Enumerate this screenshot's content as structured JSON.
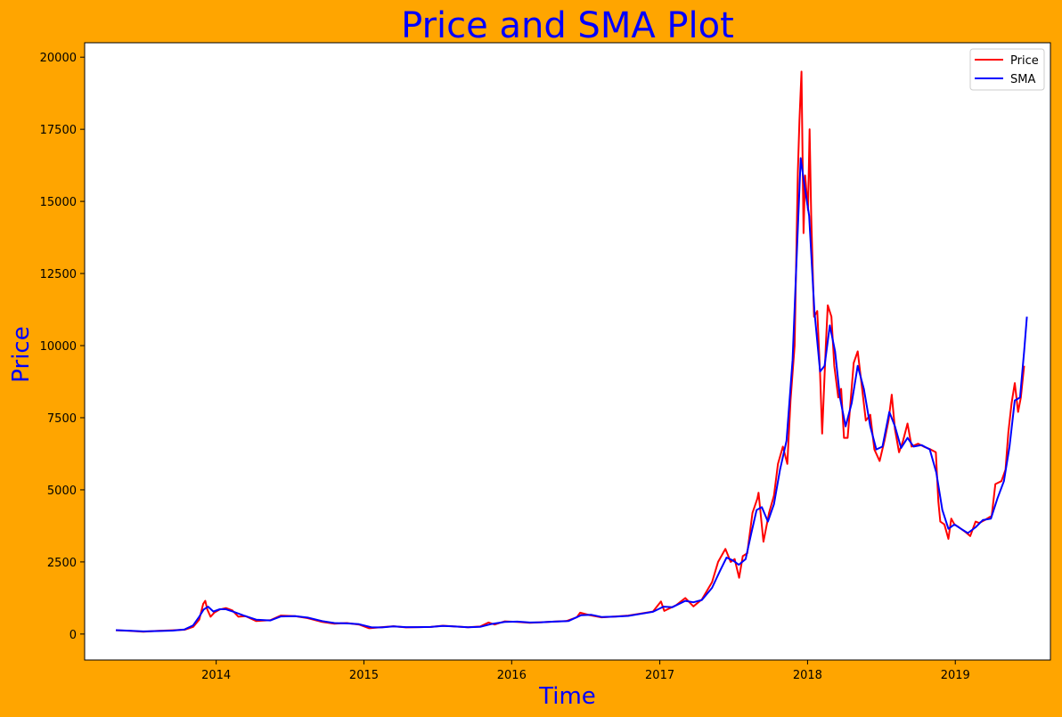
{
  "chart_data": {
    "type": "line",
    "title": "Price and SMA Plot",
    "xlabel": "Time",
    "ylabel": "Price",
    "title_color": "#0000FF",
    "label_color": "#0000FF",
    "background_color": "#FFA500",
    "plot_background": "#FFFFFF",
    "x_ticks": [
      "2014",
      "2015",
      "2016",
      "2017",
      "2018",
      "2019"
    ],
    "y_ticks": [
      0,
      2500,
      5000,
      7500,
      10000,
      12500,
      15000,
      17500,
      20000
    ],
    "xlim": [
      "2013-02-10",
      "2019-08-24"
    ],
    "ylim": [
      -900,
      20500
    ],
    "grid": false,
    "legend_position": "top-right",
    "series": [
      {
        "name": "Price",
        "color": "#FF0000",
        "points": [
          [
            "2013-04-28",
            130
          ],
          [
            "2013-06-01",
            110
          ],
          [
            "2013-07-05",
            80
          ],
          [
            "2013-08-10",
            110
          ],
          [
            "2013-09-15",
            130
          ],
          [
            "2013-10-15",
            150
          ],
          [
            "2013-11-05",
            250
          ],
          [
            "2013-11-20",
            500
          ],
          [
            "2013-11-30",
            1050
          ],
          [
            "2013-12-05",
            1150
          ],
          [
            "2013-12-10",
            850
          ],
          [
            "2013-12-18",
            600
          ],
          [
            "2013-12-28",
            750
          ],
          [
            "2014-01-10",
            850
          ],
          [
            "2014-01-25",
            900
          ],
          [
            "2014-02-10",
            820
          ],
          [
            "2014-02-25",
            600
          ],
          [
            "2014-03-15",
            620
          ],
          [
            "2014-04-10",
            450
          ],
          [
            "2014-05-15",
            480
          ],
          [
            "2014-06-10",
            640
          ],
          [
            "2014-07-15",
            620
          ],
          [
            "2014-08-15",
            550
          ],
          [
            "2014-09-20",
            420
          ],
          [
            "2014-10-20",
            360
          ],
          [
            "2014-11-20",
            380
          ],
          [
            "2014-12-20",
            330
          ],
          [
            "2015-01-14",
            200
          ],
          [
            "2015-02-15",
            240
          ],
          [
            "2015-03-15",
            270
          ],
          [
            "2015-04-15",
            230
          ],
          [
            "2015-05-15",
            240
          ],
          [
            "2015-06-15",
            245
          ],
          [
            "2015-07-15",
            290
          ],
          [
            "2015-08-15",
            260
          ],
          [
            "2015-09-15",
            235
          ],
          [
            "2015-10-15",
            260
          ],
          [
            "2015-11-05",
            400
          ],
          [
            "2015-11-20",
            330
          ],
          [
            "2015-12-15",
            440
          ],
          [
            "2016-01-15",
            420
          ],
          [
            "2016-02-15",
            390
          ],
          [
            "2016-03-15",
            410
          ],
          [
            "2016-04-15",
            430
          ],
          [
            "2016-05-15",
            450
          ],
          [
            "2016-06-10",
            580
          ],
          [
            "2016-06-18",
            740
          ],
          [
            "2016-07-10",
            660
          ],
          [
            "2016-08-10",
            580
          ],
          [
            "2016-09-15",
            610
          ],
          [
            "2016-10-15",
            640
          ],
          [
            "2016-11-15",
            710
          ],
          [
            "2016-12-15",
            780
          ],
          [
            "2017-01-04",
            1130
          ],
          [
            "2017-01-12",
            800
          ],
          [
            "2017-02-10",
            1000
          ],
          [
            "2017-03-05",
            1250
          ],
          [
            "2017-03-25",
            960
          ],
          [
            "2017-04-15",
            1200
          ],
          [
            "2017-05-10",
            1800
          ],
          [
            "2017-05-25",
            2500
          ],
          [
            "2017-06-12",
            2950
          ],
          [
            "2017-06-25",
            2500
          ],
          [
            "2017-07-05",
            2600
          ],
          [
            "2017-07-16",
            1950
          ],
          [
            "2017-07-25",
            2700
          ],
          [
            "2017-08-05",
            2800
          ],
          [
            "2017-08-18",
            4200
          ],
          [
            "2017-08-30",
            4700
          ],
          [
            "2017-09-02",
            4900
          ],
          [
            "2017-09-14",
            3200
          ],
          [
            "2017-09-28",
            4200
          ],
          [
            "2017-10-10",
            4800
          ],
          [
            "2017-10-20",
            5900
          ],
          [
            "2017-11-01",
            6500
          ],
          [
            "2017-11-12",
            5900
          ],
          [
            "2017-11-20",
            8100
          ],
          [
            "2017-11-30",
            10000
          ],
          [
            "2017-12-08",
            16000
          ],
          [
            "2017-12-12",
            17800
          ],
          [
            "2017-12-17",
            19500
          ],
          [
            "2017-12-22",
            13900
          ],
          [
            "2017-12-26",
            15900
          ],
          [
            "2018-01-02",
            14700
          ],
          [
            "2018-01-06",
            17500
          ],
          [
            "2018-01-10",
            14500
          ],
          [
            "2018-01-17",
            11000
          ],
          [
            "2018-01-25",
            11200
          ],
          [
            "2018-02-01",
            9000
          ],
          [
            "2018-02-06",
            6950
          ],
          [
            "2018-02-15",
            10000
          ],
          [
            "2018-02-20",
            11400
          ],
          [
            "2018-03-01",
            11000
          ],
          [
            "2018-03-08",
            9300
          ],
          [
            "2018-03-18",
            8200
          ],
          [
            "2018-03-25",
            8500
          ],
          [
            "2018-04-01",
            6800
          ],
          [
            "2018-04-10",
            6800
          ],
          [
            "2018-04-25",
            9400
          ],
          [
            "2018-05-05",
            9800
          ],
          [
            "2018-05-15",
            8600
          ],
          [
            "2018-05-25",
            7400
          ],
          [
            "2018-06-05",
            7600
          ],
          [
            "2018-06-15",
            6400
          ],
          [
            "2018-06-28",
            6000
          ],
          [
            "2018-07-10",
            6700
          ],
          [
            "2018-07-20",
            7400
          ],
          [
            "2018-07-28",
            8300
          ],
          [
            "2018-08-05",
            7100
          ],
          [
            "2018-08-15",
            6300
          ],
          [
            "2018-08-25",
            6700
          ],
          [
            "2018-09-05",
            7300
          ],
          [
            "2018-09-15",
            6500
          ],
          [
            "2018-10-01",
            6600
          ],
          [
            "2018-10-15",
            6500
          ],
          [
            "2018-11-01",
            6400
          ],
          [
            "2018-11-14",
            6300
          ],
          [
            "2018-11-20",
            4600
          ],
          [
            "2018-11-25",
            3900
          ],
          [
            "2018-12-05",
            3800
          ],
          [
            "2018-12-15",
            3300
          ],
          [
            "2018-12-22",
            4000
          ],
          [
            "2018-12-30",
            3800
          ],
          [
            "2019-01-10",
            3700
          ],
          [
            "2019-01-25",
            3550
          ],
          [
            "2019-02-07",
            3400
          ],
          [
            "2019-02-20",
            3900
          ],
          [
            "2019-03-01",
            3850
          ],
          [
            "2019-03-15",
            3950
          ],
          [
            "2019-04-01",
            4100
          ],
          [
            "2019-04-10",
            5200
          ],
          [
            "2019-04-25",
            5300
          ],
          [
            "2019-05-05",
            5700
          ],
          [
            "2019-05-12",
            7000
          ],
          [
            "2019-05-20",
            8000
          ],
          [
            "2019-05-28",
            8700
          ],
          [
            "2019-06-05",
            7700
          ],
          [
            "2019-06-12",
            8200
          ],
          [
            "2019-06-20",
            9300
          ]
        ]
      },
      {
        "name": "SMA",
        "color": "#0000FF",
        "points": [
          [
            "2013-04-28",
            135
          ],
          [
            "2013-06-01",
            115
          ],
          [
            "2013-07-05",
            90
          ],
          [
            "2013-08-10",
            105
          ],
          [
            "2013-09-15",
            120
          ],
          [
            "2013-10-15",
            160
          ],
          [
            "2013-11-05",
            300
          ],
          [
            "2013-11-20",
            600
          ],
          [
            "2013-12-01",
            850
          ],
          [
            "2013-12-12",
            950
          ],
          [
            "2013-12-25",
            780
          ],
          [
            "2014-01-10",
            860
          ],
          [
            "2014-01-25",
            860
          ],
          [
            "2014-02-15",
            760
          ],
          [
            "2014-03-10",
            640
          ],
          [
            "2014-04-10",
            500
          ],
          [
            "2014-05-15",
            470
          ],
          [
            "2014-06-10",
            610
          ],
          [
            "2014-07-15",
            620
          ],
          [
            "2014-08-15",
            570
          ],
          [
            "2014-09-20",
            450
          ],
          [
            "2014-10-20",
            380
          ],
          [
            "2014-11-20",
            370
          ],
          [
            "2014-12-20",
            340
          ],
          [
            "2015-01-20",
            230
          ],
          [
            "2015-02-15",
            230
          ],
          [
            "2015-03-15",
            265
          ],
          [
            "2015-04-15",
            240
          ],
          [
            "2015-05-15",
            240
          ],
          [
            "2015-06-15",
            245
          ],
          [
            "2015-07-15",
            280
          ],
          [
            "2015-08-15",
            260
          ],
          [
            "2015-09-15",
            235
          ],
          [
            "2015-10-15",
            250
          ],
          [
            "2015-11-10",
            340
          ],
          [
            "2015-12-15",
            420
          ],
          [
            "2016-01-15",
            430
          ],
          [
            "2016-02-15",
            400
          ],
          [
            "2016-03-15",
            410
          ],
          [
            "2016-04-15",
            430
          ],
          [
            "2016-05-20",
            450
          ],
          [
            "2016-06-20",
            650
          ],
          [
            "2016-07-15",
            670
          ],
          [
            "2016-08-10",
            590
          ],
          [
            "2016-09-15",
            605
          ],
          [
            "2016-10-15",
            630
          ],
          [
            "2016-11-15",
            700
          ],
          [
            "2016-12-15",
            770
          ],
          [
            "2017-01-10",
            950
          ],
          [
            "2017-02-01",
            930
          ],
          [
            "2017-03-05",
            1150
          ],
          [
            "2017-03-25",
            1100
          ],
          [
            "2017-04-15",
            1180
          ],
          [
            "2017-05-10",
            1600
          ],
          [
            "2017-05-30",
            2200
          ],
          [
            "2017-06-15",
            2650
          ],
          [
            "2017-07-01",
            2550
          ],
          [
            "2017-07-15",
            2400
          ],
          [
            "2017-08-01",
            2600
          ],
          [
            "2017-08-15",
            3500
          ],
          [
            "2017-08-28",
            4300
          ],
          [
            "2017-09-10",
            4400
          ],
          [
            "2017-09-25",
            3900
          ],
          [
            "2017-10-10",
            4500
          ],
          [
            "2017-10-25",
            5700
          ],
          [
            "2017-11-10",
            6700
          ],
          [
            "2017-11-25",
            9500
          ],
          [
            "2017-12-05",
            13000
          ],
          [
            "2017-12-15",
            16500
          ],
          [
            "2017-12-25",
            15500
          ],
          [
            "2018-01-05",
            14500
          ],
          [
            "2018-01-18",
            11200
          ],
          [
            "2018-02-01",
            9100
          ],
          [
            "2018-02-12",
            9300
          ],
          [
            "2018-02-25",
            10700
          ],
          [
            "2018-03-10",
            9800
          ],
          [
            "2018-03-22",
            8200
          ],
          [
            "2018-04-05",
            7200
          ],
          [
            "2018-04-20",
            8000
          ],
          [
            "2018-05-05",
            9300
          ],
          [
            "2018-05-20",
            8500
          ],
          [
            "2018-06-05",
            7200
          ],
          [
            "2018-06-20",
            6400
          ],
          [
            "2018-07-05",
            6500
          ],
          [
            "2018-07-22",
            7700
          ],
          [
            "2018-08-05",
            7200
          ],
          [
            "2018-08-20",
            6450
          ],
          [
            "2018-09-05",
            6800
          ],
          [
            "2018-09-20",
            6500
          ],
          [
            "2018-10-10",
            6550
          ],
          [
            "2018-10-30",
            6400
          ],
          [
            "2018-11-15",
            5600
          ],
          [
            "2018-11-30",
            4300
          ],
          [
            "2018-12-15",
            3650
          ],
          [
            "2018-12-30",
            3800
          ],
          [
            "2019-01-15",
            3650
          ],
          [
            "2019-02-01",
            3500
          ],
          [
            "2019-02-20",
            3700
          ],
          [
            "2019-03-10",
            3950
          ],
          [
            "2019-03-30",
            4000
          ],
          [
            "2019-04-15",
            4700
          ],
          [
            "2019-05-01",
            5300
          ],
          [
            "2019-05-15",
            6500
          ],
          [
            "2019-05-28",
            8100
          ],
          [
            "2019-06-10",
            8200
          ],
          [
            "2019-06-20",
            9800
          ],
          [
            "2019-06-27",
            11000
          ]
        ]
      }
    ]
  }
}
